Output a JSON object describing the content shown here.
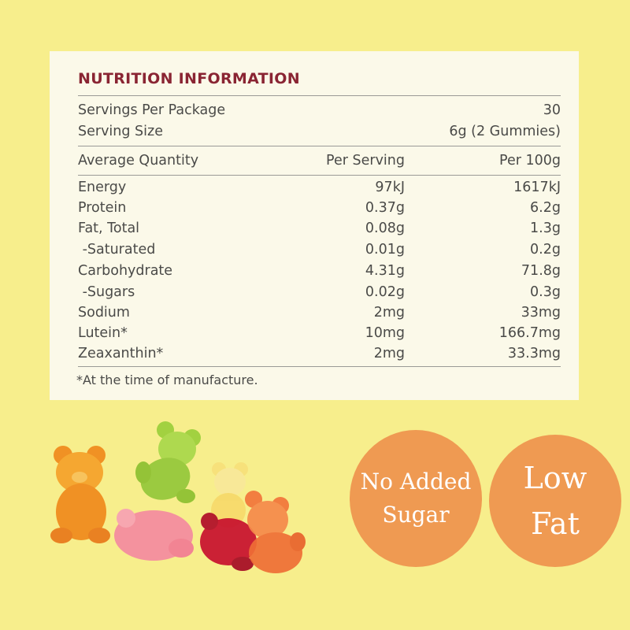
{
  "panel": {
    "title": "NUTRITION INFORMATION",
    "servings": [
      {
        "label": "Servings Per Package",
        "value": "30"
      },
      {
        "label": "Serving Size",
        "value": "6g (2 Gummies)"
      }
    ],
    "headers": {
      "quantity": "Average Quantity",
      "per_serving": "Per Serving",
      "per_100g": "Per 100g"
    },
    "rows": [
      {
        "name": "Energy",
        "per_serving": "97kJ",
        "per_100g": "1617kJ"
      },
      {
        "name": "Protein",
        "per_serving": "0.37g",
        "per_100g": "6.2g"
      },
      {
        "name": "Fat, Total",
        "per_serving": "0.08g",
        "per_100g": "1.3g"
      },
      {
        "name": " -Saturated",
        "per_serving": "0.01g",
        "per_100g": "0.2g"
      },
      {
        "name": "Carbohydrate",
        "per_serving": "4.31g",
        "per_100g": "71.8g"
      },
      {
        "name": " -Sugars",
        "per_serving": "0.02g",
        "per_100g": "0.3g"
      },
      {
        "name": "Sodium",
        "per_serving": "2mg",
        "per_100g": "33mg"
      },
      {
        "name": "Lutein*",
        "per_serving": "10mg",
        "per_100g": "166.7mg"
      },
      {
        "name": "Zeaxanthin*",
        "per_serving": "2mg",
        "per_100g": "33.3mg"
      }
    ],
    "footnote": "*At the time of manufacture."
  },
  "badges": {
    "no_added_sugar": [
      "No Added",
      "Sugar"
    ],
    "low_fat": [
      "Low",
      "Fat"
    ]
  },
  "colors": {
    "background": "#f7ee8c",
    "panel": "#fbf9e9",
    "title": "#8a2533",
    "badge": "#ef9a52"
  }
}
